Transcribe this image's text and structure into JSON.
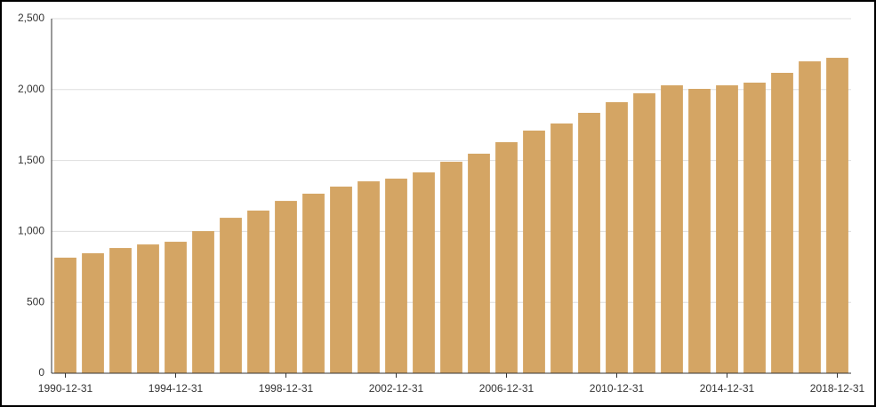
{
  "chart_data": {
    "type": "bar",
    "categories": [
      "1990-12-31",
      null,
      null,
      null,
      "1994-12-31",
      null,
      null,
      null,
      "1998-12-31",
      null,
      null,
      null,
      "2002-12-31",
      null,
      null,
      null,
      "2006-12-31",
      null,
      null,
      null,
      "2010-12-31",
      null,
      null,
      null,
      "2014-12-31",
      null,
      null,
      null,
      "2018-12-31"
    ],
    "values": [
      815,
      846,
      883,
      908,
      927,
      1002,
      1096,
      1147,
      1215,
      1266,
      1316,
      1353,
      1372,
      1416,
      1491,
      1548,
      1629,
      1711,
      1761,
      1836,
      1911,
      1974,
      2030,
      2005,
      2030,
      2049,
      2118,
      2199,
      2224
    ],
    "color": "#d4a564",
    "ylim": [
      0,
      2500
    ],
    "yticks": [
      0,
      500,
      {
        "value": 1000,
        "label": "1,000"
      },
      {
        "value": 1500,
        "label": "1,500"
      },
      {
        "value": 2000,
        "label": "2,000"
      },
      {
        "value": 2500,
        "label": "2,500"
      }
    ],
    "grid": true
  }
}
